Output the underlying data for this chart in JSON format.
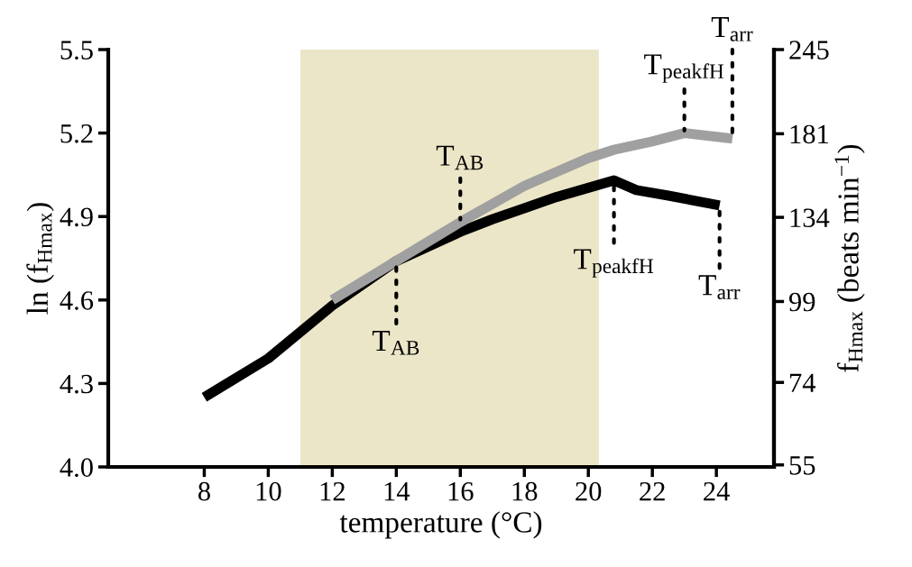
{
  "chart_data": {
    "type": "line",
    "xlabel": "temperature (°C)",
    "ylabel": "ln (f$_{Hmax}$)",
    "y2label": "f$_{Hmax}$ (beats min$^{−1}$)",
    "xlim": [
      5,
      25.8
    ],
    "xticks": [
      8,
      10,
      12,
      14,
      16,
      18,
      20,
      22,
      24
    ],
    "ylim": [
      4.0,
      5.5
    ],
    "yticks": [
      {
        "value": 4.0,
        "label": "4.0"
      },
      4.3,
      4.6,
      4.9,
      5.2,
      5.5
    ],
    "log": "y2",
    "y2lim": [
      54.6,
      245
    ],
    "y2ticks": [
      55,
      74,
      99,
      134,
      181,
      245
    ],
    "grid": false,
    "bands": [
      {
        "axis": "x",
        "from": 11,
        "to": 20.33,
        "color": "#ece6c8"
      }
    ],
    "series": [
      {
        "color": "#000000",
        "x": [
          8,
          10,
          12,
          14,
          16,
          17,
          18,
          19,
          20.8,
          21.5,
          22.5,
          24.1
        ],
        "values": [
          4.25,
          4.39,
          4.58,
          4.74,
          4.845,
          4.89,
          4.93,
          4.97,
          5.03,
          4.995,
          4.975,
          4.94
        ]
      },
      {
        "color": "#a0a0a0",
        "x": [
          12,
          14,
          16,
          18,
          20,
          20.8,
          22,
          23,
          24.5
        ],
        "values": [
          4.6,
          4.74,
          4.88,
          5.01,
          5.11,
          5.14,
          5.17,
          5.2,
          5.18
        ]
      }
    ],
    "annotations": [
      {
        "text": "T$_{AB}$",
        "x": 14,
        "y": 4.74
      },
      {
        "text": "T$_{AB}$",
        "x": 16,
        "y": 4.88
      },
      {
        "text": "T$_{peakfH}$",
        "x": 20.8,
        "y": 5.03
      },
      {
        "text": "T$_{peakfH}$",
        "x": 23,
        "y": 5.2
      },
      {
        "text": "T$_{arr}$",
        "x": 24.1,
        "y": 4.94
      },
      {
        "text": "T$_{arr}$",
        "x": 24.5,
        "y": 5.18
      }
    ]
  }
}
